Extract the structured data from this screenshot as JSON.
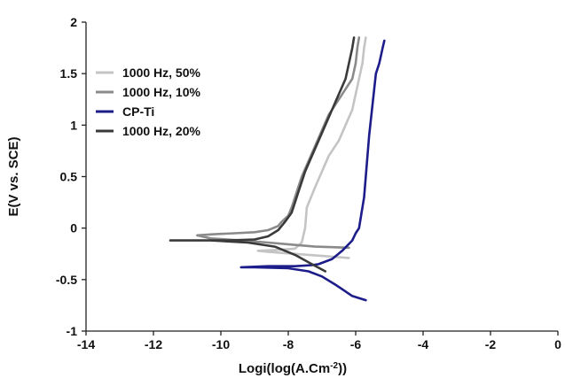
{
  "chart_data": {
    "type": "line",
    "title": "",
    "xlabel": "Logi(log(A.Cm",
    "xlabel_sup": "-2",
    "xlabel_end": "))",
    "ylabel": "E(V vs. SCE)",
    "xlim": [
      -14,
      0
    ],
    "ylim": [
      -1,
      2
    ],
    "x_ticks": [
      -14,
      -12,
      -10,
      -8,
      -6,
      -4,
      -2,
      0
    ],
    "y_ticks": [
      -1,
      -0.5,
      0,
      0.5,
      1,
      1.5,
      2
    ],
    "x_tick_labels": [
      "-14",
      "-12",
      "-10",
      "-8",
      "-6",
      "-4",
      "-2",
      "0"
    ],
    "y_tick_labels": [
      "-1",
      "-0.5",
      "0",
      "0.5",
      "1",
      "1.5",
      "2"
    ],
    "grid": false,
    "legend_position": "top-left",
    "series": [
      {
        "name": "1000 Hz, 50%",
        "color": "#c4c4c4",
        "points": [
          [
            -6.2,
            -0.29
          ],
          [
            -7.0,
            -0.27
          ],
          [
            -7.8,
            -0.25
          ],
          [
            -8.6,
            -0.23
          ],
          [
            -8.9,
            -0.22
          ],
          [
            -8.2,
            -0.21
          ],
          [
            -7.8,
            -0.2
          ],
          [
            -7.6,
            -0.14
          ],
          [
            -7.5,
            0.0
          ],
          [
            -7.45,
            0.2
          ],
          [
            -7.2,
            0.4
          ],
          [
            -7.0,
            0.55
          ],
          [
            -6.8,
            0.7
          ],
          [
            -6.5,
            0.85
          ],
          [
            -6.3,
            1.0
          ],
          [
            -6.1,
            1.15
          ],
          [
            -6.0,
            1.3
          ],
          [
            -5.9,
            1.45
          ],
          [
            -5.8,
            1.6
          ],
          [
            -5.75,
            1.75
          ],
          [
            -5.7,
            1.85
          ]
        ]
      },
      {
        "name": "1000 Hz, 10%",
        "color": "#8a8a8a",
        "points": [
          [
            -6.2,
            -0.19
          ],
          [
            -7.2,
            -0.18
          ],
          [
            -7.9,
            -0.16
          ],
          [
            -8.6,
            -0.14
          ],
          [
            -9.4,
            -0.12
          ],
          [
            -10.3,
            -0.1
          ],
          [
            -10.7,
            -0.07
          ],
          [
            -10.2,
            -0.06
          ],
          [
            -9.6,
            -0.05
          ],
          [
            -9.0,
            -0.04
          ],
          [
            -8.6,
            -0.02
          ],
          [
            -8.3,
            0.02
          ],
          [
            -8.2,
            0.06
          ],
          [
            -8.0,
            0.12
          ],
          [
            -7.9,
            0.2
          ],
          [
            -7.8,
            0.3
          ],
          [
            -7.7,
            0.4
          ],
          [
            -7.6,
            0.5
          ],
          [
            -7.4,
            0.65
          ],
          [
            -7.2,
            0.8
          ],
          [
            -7.0,
            0.95
          ],
          [
            -6.8,
            1.1
          ],
          [
            -6.5,
            1.25
          ],
          [
            -6.3,
            1.35
          ],
          [
            -6.1,
            1.45
          ],
          [
            -6.0,
            1.6
          ],
          [
            -5.95,
            1.75
          ],
          [
            -5.9,
            1.85
          ]
        ]
      },
      {
        "name": "CP-Ti",
        "color": "#1c1c8a",
        "points": [
          [
            -5.7,
            -0.7
          ],
          [
            -6.1,
            -0.66
          ],
          [
            -6.6,
            -0.55
          ],
          [
            -7.0,
            -0.47
          ],
          [
            -7.4,
            -0.42
          ],
          [
            -8.0,
            -0.39
          ],
          [
            -9.0,
            -0.38
          ],
          [
            -9.4,
            -0.38
          ],
          [
            -8.6,
            -0.37
          ],
          [
            -7.8,
            -0.37
          ],
          [
            -7.3,
            -0.36
          ],
          [
            -7.1,
            -0.35
          ],
          [
            -6.7,
            -0.3
          ],
          [
            -6.4,
            -0.22
          ],
          [
            -6.1,
            -0.12
          ],
          [
            -6.0,
            -0.05
          ],
          [
            -5.9,
            0.0
          ],
          [
            -5.85,
            0.1
          ],
          [
            -5.75,
            0.3
          ],
          [
            -5.7,
            0.5
          ],
          [
            -5.65,
            0.7
          ],
          [
            -5.6,
            0.9
          ],
          [
            -5.55,
            1.05
          ],
          [
            -5.5,
            1.2
          ],
          [
            -5.45,
            1.35
          ],
          [
            -5.4,
            1.5
          ],
          [
            -5.3,
            1.6
          ],
          [
            -5.2,
            1.75
          ],
          [
            -5.15,
            1.82
          ]
        ]
      },
      {
        "name": "1000 Hz, 20%",
        "color": "#3a3a3a",
        "points": [
          [
            -6.9,
            -0.42
          ],
          [
            -7.3,
            -0.35
          ],
          [
            -7.8,
            -0.26
          ],
          [
            -8.4,
            -0.18
          ],
          [
            -9.2,
            -0.14
          ],
          [
            -10.3,
            -0.12
          ],
          [
            -11.5,
            -0.12
          ],
          [
            -10.6,
            -0.12
          ],
          [
            -9.8,
            -0.12
          ],
          [
            -9.0,
            -0.11
          ],
          [
            -8.6,
            -0.08
          ],
          [
            -8.3,
            -0.02
          ],
          [
            -8.1,
            0.06
          ],
          [
            -7.9,
            0.15
          ],
          [
            -7.8,
            0.25
          ],
          [
            -7.7,
            0.35
          ],
          [
            -7.6,
            0.45
          ],
          [
            -7.5,
            0.55
          ],
          [
            -7.3,
            0.7
          ],
          [
            -7.1,
            0.85
          ],
          [
            -6.9,
            1.0
          ],
          [
            -6.7,
            1.15
          ],
          [
            -6.5,
            1.3
          ],
          [
            -6.3,
            1.45
          ],
          [
            -6.2,
            1.6
          ],
          [
            -6.1,
            1.75
          ],
          [
            -6.05,
            1.85
          ]
        ]
      }
    ]
  }
}
